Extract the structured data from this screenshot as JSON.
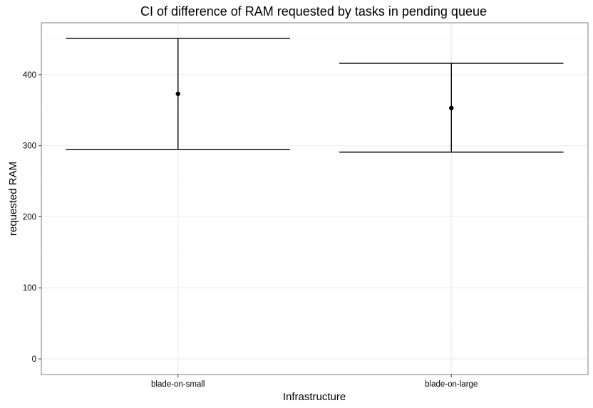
{
  "chart_data": {
    "type": "errorbar",
    "title": "CI of difference of RAM requested by tasks in pending queue",
    "xlabel": "Infrastructure",
    "ylabel": "requested RAM",
    "categories": [
      "blade-on-small",
      "blade-on-large"
    ],
    "points": [
      {
        "category": "blade-on-small",
        "estimate": 373,
        "lower": 295,
        "upper": 451
      },
      {
        "category": "blade-on-large",
        "estimate": 353,
        "lower": 291,
        "upper": 416
      }
    ],
    "ylim": [
      -22,
      473
    ],
    "yticks": [
      0,
      100,
      200,
      300,
      400
    ],
    "grid": true,
    "colors": {
      "line": "#000000",
      "grid": "#ebebeb",
      "border": "#7f7f7f"
    }
  }
}
